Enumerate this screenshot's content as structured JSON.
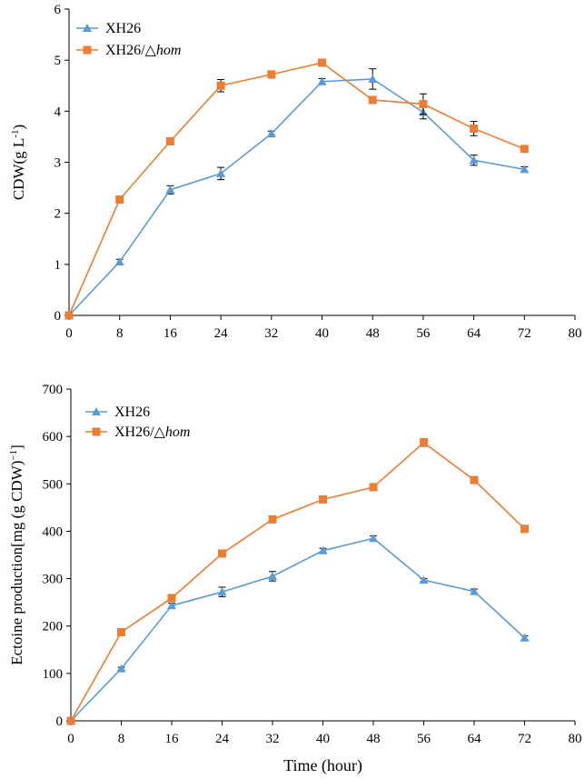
{
  "colors": {
    "xh26": "#5B9BD5",
    "hom": "#ED7D31",
    "axis": "#000000"
  },
  "chart_data": [
    {
      "type": "line",
      "ylabel_main": "CDW(g L",
      "ylabel_sup": "-1",
      "ylabel_end": ")",
      "xlabel": "",
      "x": [
        0,
        8,
        16,
        24,
        32,
        40,
        48,
        56,
        64,
        72
      ],
      "xlim": [
        0,
        80
      ],
      "ylim": [
        0,
        6
      ],
      "xticks": [
        0,
        8,
        16,
        24,
        32,
        40,
        48,
        56,
        64,
        72,
        80
      ],
      "yticks": [
        0,
        1,
        2,
        3,
        4,
        5,
        6
      ],
      "legend": "top-left",
      "series": [
        {
          "name": "XH26",
          "marker": "triangle",
          "color": "#5B9BD5",
          "values": [
            0,
            1.05,
            2.46,
            2.78,
            3.56,
            4.58,
            4.63,
            3.98,
            3.04,
            2.86
          ],
          "errors": [
            0,
            0.05,
            0.08,
            0.12,
            0.05,
            0.06,
            0.2,
            0.13,
            0.1,
            0.05
          ]
        },
        {
          "name": "XH26/△",
          "name_italic": "hom",
          "marker": "square",
          "color": "#ED7D31",
          "values": [
            0,
            2.27,
            3.41,
            4.5,
            4.72,
            4.95,
            4.22,
            4.14,
            3.66,
            3.26
          ],
          "errors": [
            0,
            0,
            0.05,
            0.12,
            0.07,
            0.05,
            0,
            0.2,
            0.14,
            0.04
          ]
        }
      ]
    },
    {
      "type": "line",
      "ylabel_main": "Ectoine production[mg (g CDW)",
      "ylabel_sup": "−1",
      "ylabel_end": "]",
      "xlabel": "Time (hour)",
      "x": [
        0,
        8,
        16,
        24,
        32,
        40,
        48,
        56,
        64,
        72
      ],
      "xlim": [
        0,
        80
      ],
      "ylim": [
        0,
        700
      ],
      "xticks": [
        0,
        8,
        16,
        24,
        32,
        40,
        48,
        56,
        64,
        72,
        80
      ],
      "yticks": [
        0,
        100,
        200,
        300,
        400,
        500,
        600,
        700
      ],
      "legend": "top-left",
      "series": [
        {
          "name": "XH26",
          "marker": "triangle",
          "color": "#5B9BD5",
          "values": [
            0,
            110,
            243,
            272,
            305,
            359,
            385,
            297,
            273,
            175
          ],
          "errors": [
            0,
            3,
            5,
            10,
            10,
            5,
            5,
            3,
            5,
            4
          ]
        },
        {
          "name": "XH26/△",
          "name_italic": "hom",
          "marker": "square",
          "color": "#ED7D31",
          "values": [
            0,
            187,
            259,
            353,
            425,
            467,
            493,
            587,
            508,
            405
          ],
          "errors": [
            0,
            0,
            0,
            0,
            0,
            0,
            0,
            8,
            0,
            0
          ]
        }
      ]
    }
  ]
}
